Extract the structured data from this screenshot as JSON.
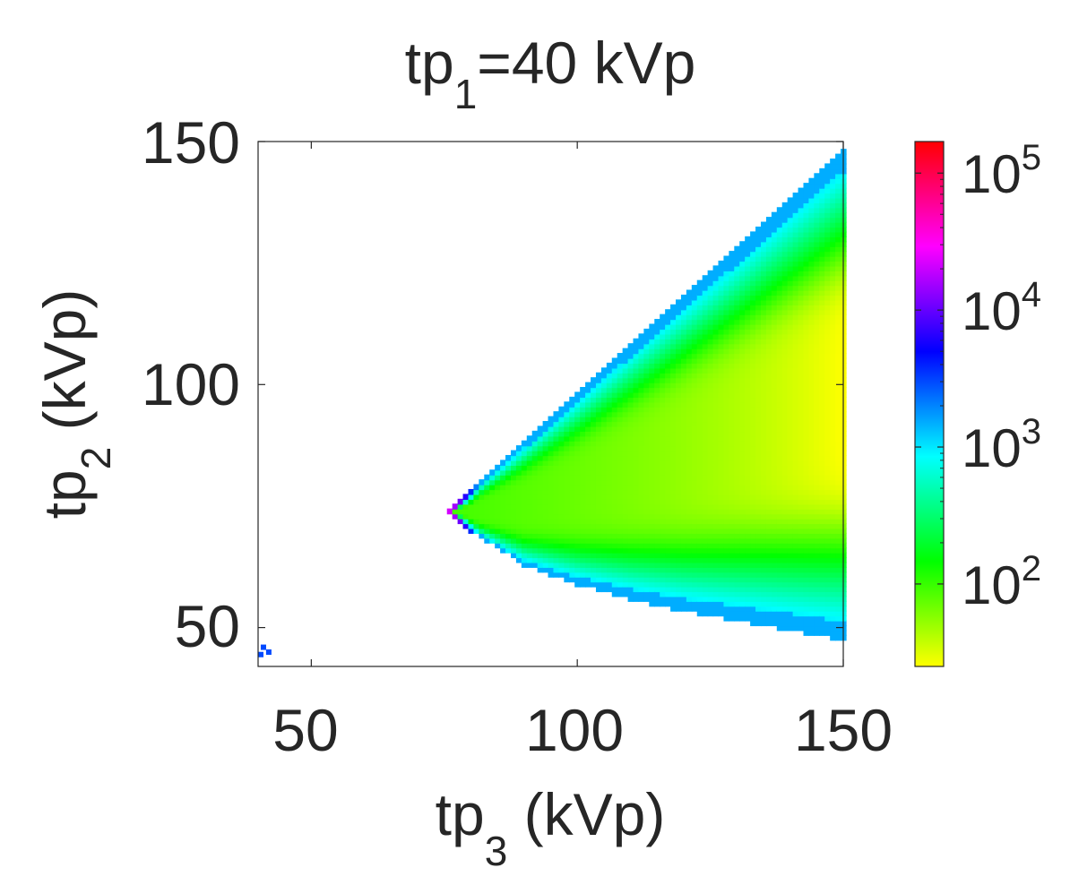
{
  "chart_data": {
    "type": "heatmap",
    "title": {
      "base": "tp",
      "sub": "1",
      "rest": "=40 kVp"
    },
    "xlabel": {
      "base": "tp",
      "sub": "3",
      "rest": " (kVp)"
    },
    "ylabel": {
      "base": "tp",
      "sub": "2",
      "rest": " (kVp)"
    },
    "xlim": [
      40,
      150
    ],
    "ylim": [
      42,
      150
    ],
    "xticks": [
      50,
      100,
      150
    ],
    "yticks": [
      50,
      100,
      150
    ],
    "xtick_labels": [
      "50",
      "100",
      "150"
    ],
    "ytick_labels": [
      "50",
      "100",
      "150"
    ],
    "grid": false,
    "colorbar": {
      "scale": "log",
      "range": [
        25,
        170000
      ],
      "ticks": [
        100,
        1000,
        10000,
        100000
      ],
      "tick_labels": [
        {
          "base": "10",
          "exp": "2"
        },
        {
          "base": "10",
          "exp": "3"
        },
        {
          "base": "10",
          "exp": "4"
        },
        {
          "base": "10",
          "exp": "5"
        }
      ],
      "colormap": [
        "#ffff00",
        "#00ff00",
        "#00ffff",
        "#0000ff",
        "#ff00ff",
        "#ff0000"
      ]
    },
    "region": {
      "description_of_shape": "valid where tp2 between lower and upper boundary curves",
      "apex": [
        76,
        74
      ],
      "upper_boundary": [
        [
          76,
          74
        ],
        [
          150,
          148
        ]
      ],
      "lower_boundary": [
        [
          76,
          74
        ],
        [
          80,
          70
        ],
        [
          90,
          63
        ],
        [
          100,
          59
        ],
        [
          110,
          56
        ],
        [
          120,
          53.5
        ],
        [
          130,
          51.5
        ],
        [
          140,
          49.5
        ],
        [
          150,
          47.5
        ]
      ],
      "interior_min": 25,
      "edge_value": 1500,
      "apex_value": 20000,
      "isolated_cells": [
        [
          40,
          44.5
        ],
        [
          40.5,
          46
        ],
        [
          41.5,
          45
        ]
      ]
    }
  }
}
